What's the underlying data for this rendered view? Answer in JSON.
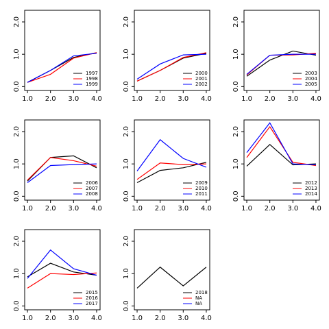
{
  "chart_data": [
    {
      "type": "line",
      "x": [
        1,
        2,
        3,
        4
      ],
      "xlim": [
        0.88,
        4.15
      ],
      "ylim": [
        -0.12,
        2.36
      ],
      "xticks": [
        {
          "value": 1,
          "label": "1.0"
        },
        {
          "value": 2,
          "label": "2.0"
        },
        {
          "value": 3,
          "label": "3.0"
        },
        {
          "value": 4,
          "label": "4.0"
        }
      ],
      "yticks": [
        {
          "value": 0,
          "label": "0.0"
        },
        {
          "value": 1,
          "label": "1.0"
        },
        {
          "value": 2,
          "label": "2.0"
        }
      ],
      "legend": "bottomright",
      "series": [
        {
          "name": "1997",
          "color": "#000000",
          "values": [
            0.13,
            0.5,
            0.9,
            1.05
          ]
        },
        {
          "name": "1998",
          "color": "#ff0000",
          "values": [
            0.13,
            0.38,
            0.88,
            1.05
          ]
        },
        {
          "name": "1999",
          "color": "#0000ff",
          "values": [
            0.13,
            0.5,
            0.95,
            1.03
          ]
        }
      ]
    },
    {
      "type": "line",
      "x": [
        1,
        2,
        3,
        4
      ],
      "xlim": [
        0.88,
        4.15
      ],
      "ylim": [
        -0.12,
        2.36
      ],
      "xticks": [
        {
          "value": 1,
          "label": "1.0"
        },
        {
          "value": 2,
          "label": "2.0"
        },
        {
          "value": 3,
          "label": "3.0"
        },
        {
          "value": 4,
          "label": "4.0"
        }
      ],
      "yticks": [
        {
          "value": 0,
          "label": "0.0"
        },
        {
          "value": 1,
          "label": "1.0"
        },
        {
          "value": 2,
          "label": "2.0"
        }
      ],
      "legend": "bottomright",
      "series": [
        {
          "name": "2000",
          "color": "#000000",
          "values": [
            0.17,
            0.5,
            0.88,
            1.03
          ]
        },
        {
          "name": "2001",
          "color": "#ff0000",
          "values": [
            0.17,
            0.5,
            0.9,
            1.05
          ]
        },
        {
          "name": "2002",
          "color": "#0000ff",
          "values": [
            0.23,
            0.7,
            0.98,
            1.0
          ]
        }
      ]
    },
    {
      "type": "line",
      "x": [
        1,
        2,
        3,
        4
      ],
      "xlim": [
        0.88,
        4.15
      ],
      "ylim": [
        -0.12,
        2.36
      ],
      "xticks": [
        {
          "value": 1,
          "label": "1.0"
        },
        {
          "value": 2,
          "label": "2.0"
        },
        {
          "value": 3,
          "label": "3.0"
        },
        {
          "value": 4,
          "label": "4.0"
        }
      ],
      "yticks": [
        {
          "value": 0,
          "label": "0.0"
        },
        {
          "value": 1,
          "label": "1.0"
        },
        {
          "value": 2,
          "label": "2.0"
        }
      ],
      "legend": "bottomright",
      "series": [
        {
          "name": "2003",
          "color": "#000000",
          "values": [
            0.32,
            0.82,
            1.1,
            0.97
          ]
        },
        {
          "name": "2004",
          "color": "#ff0000",
          "values": [
            0.36,
            0.97,
            0.98,
            1.03
          ]
        },
        {
          "name": "2005",
          "color": "#0000ff",
          "values": [
            0.38,
            0.97,
            1.0,
            1.0
          ]
        }
      ]
    },
    {
      "type": "line",
      "x": [
        1,
        2,
        3,
        4
      ],
      "xlim": [
        0.88,
        4.15
      ],
      "ylim": [
        -0.12,
        2.36
      ],
      "xticks": [
        {
          "value": 1,
          "label": "1.0"
        },
        {
          "value": 2,
          "label": "2.0"
        },
        {
          "value": 3,
          "label": "3.0"
        },
        {
          "value": 4,
          "label": "4.0"
        }
      ],
      "yticks": [
        {
          "value": 0,
          "label": "0.0"
        },
        {
          "value": 1,
          "label": "1.0"
        },
        {
          "value": 2,
          "label": "2.0"
        }
      ],
      "legend": "bottomright",
      "series": [
        {
          "name": "2006",
          "color": "#000000",
          "values": [
            0.47,
            1.2,
            1.25,
            0.88
          ]
        },
        {
          "name": "2007",
          "color": "#ff0000",
          "values": [
            0.5,
            1.2,
            1.1,
            0.93
          ]
        },
        {
          "name": "2008",
          "color": "#0000ff",
          "values": [
            0.42,
            0.95,
            0.98,
            1.0
          ]
        }
      ]
    },
    {
      "type": "line",
      "x": [
        1,
        2,
        3,
        4
      ],
      "xlim": [
        0.88,
        4.15
      ],
      "ylim": [
        -0.12,
        2.36
      ],
      "xticks": [
        {
          "value": 1,
          "label": "1.0"
        },
        {
          "value": 2,
          "label": "2.0"
        },
        {
          "value": 3,
          "label": "3.0"
        },
        {
          "value": 4,
          "label": "4.0"
        }
      ],
      "yticks": [
        {
          "value": 0,
          "label": "0.0"
        },
        {
          "value": 1,
          "label": "1.0"
        },
        {
          "value": 2,
          "label": "2.0"
        }
      ],
      "legend": "bottomright",
      "series": [
        {
          "name": "2009",
          "color": "#000000",
          "values": [
            0.42,
            0.8,
            0.88,
            1.05
          ]
        },
        {
          "name": "2010",
          "color": "#ff0000",
          "values": [
            0.52,
            1.03,
            0.98,
            1.0
          ]
        },
        {
          "name": "2011",
          "color": "#0000ff",
          "values": [
            0.78,
            1.75,
            1.17,
            0.9
          ]
        }
      ]
    },
    {
      "type": "line",
      "x": [
        1,
        2,
        3,
        4
      ],
      "xlim": [
        0.88,
        4.15
      ],
      "ylim": [
        -0.12,
        2.36
      ],
      "xticks": [
        {
          "value": 1,
          "label": "1.0"
        },
        {
          "value": 2,
          "label": "2.0"
        },
        {
          "value": 3,
          "label": "3.0"
        },
        {
          "value": 4,
          "label": "4.0"
        }
      ],
      "yticks": [
        {
          "value": 0,
          "label": "0.0"
        },
        {
          "value": 1,
          "label": "1.0"
        },
        {
          "value": 2,
          "label": "2.0"
        }
      ],
      "legend": "bottomright",
      "series": [
        {
          "name": "2012",
          "color": "#000000",
          "values": [
            0.93,
            1.6,
            0.97,
            1.0
          ]
        },
        {
          "name": "2013",
          "color": "#ff0000",
          "values": [
            1.2,
            2.15,
            1.05,
            0.95
          ]
        },
        {
          "name": "2014",
          "color": "#0000ff",
          "values": [
            1.35,
            2.27,
            1.0,
            0.97
          ]
        }
      ]
    },
    {
      "type": "line",
      "x": [
        1,
        2,
        3,
        4
      ],
      "xlim": [
        0.88,
        4.15
      ],
      "ylim": [
        -0.12,
        2.36
      ],
      "xticks": [
        {
          "value": 1,
          "label": "1.0"
        },
        {
          "value": 2,
          "label": "2.0"
        },
        {
          "value": 3,
          "label": "3.0"
        },
        {
          "value": 4,
          "label": "4.0"
        }
      ],
      "yticks": [
        {
          "value": 0,
          "label": "0.0"
        },
        {
          "value": 1,
          "label": "1.0"
        },
        {
          "value": 2,
          "label": "2.0"
        }
      ],
      "legend": "bottomright",
      "series": [
        {
          "name": "2015",
          "color": "#000000",
          "values": [
            0.9,
            1.32,
            1.05,
            0.95
          ]
        },
        {
          "name": "2016",
          "color": "#ff0000",
          "values": [
            0.55,
            1.0,
            0.97,
            1.02
          ]
        },
        {
          "name": "2017",
          "color": "#0000ff",
          "values": [
            0.85,
            1.73,
            1.15,
            0.95
          ]
        }
      ]
    },
    {
      "type": "line",
      "x": [
        1,
        2,
        3,
        4
      ],
      "xlim": [
        0.88,
        4.15
      ],
      "ylim": [
        -0.12,
        2.36
      ],
      "xticks": [
        {
          "value": 1,
          "label": "1.0"
        },
        {
          "value": 2,
          "label": "2.0"
        },
        {
          "value": 3,
          "label": "3.0"
        },
        {
          "value": 4,
          "label": "4.0"
        }
      ],
      "yticks": [
        {
          "value": 0,
          "label": "0.0"
        },
        {
          "value": 1,
          "label": "1.0"
        },
        {
          "value": 2,
          "label": "2.0"
        }
      ],
      "legend": "bottomright",
      "series": [
        {
          "name": "2018",
          "color": "#000000",
          "values": [
            0.55,
            1.2,
            0.62,
            1.2
          ]
        },
        {
          "name": "NA",
          "color": "#ff0000",
          "values": [
            null,
            null,
            null,
            null
          ]
        },
        {
          "name": "NA",
          "color": "#0000ff",
          "values": [
            null,
            null,
            null,
            null
          ]
        }
      ]
    }
  ]
}
